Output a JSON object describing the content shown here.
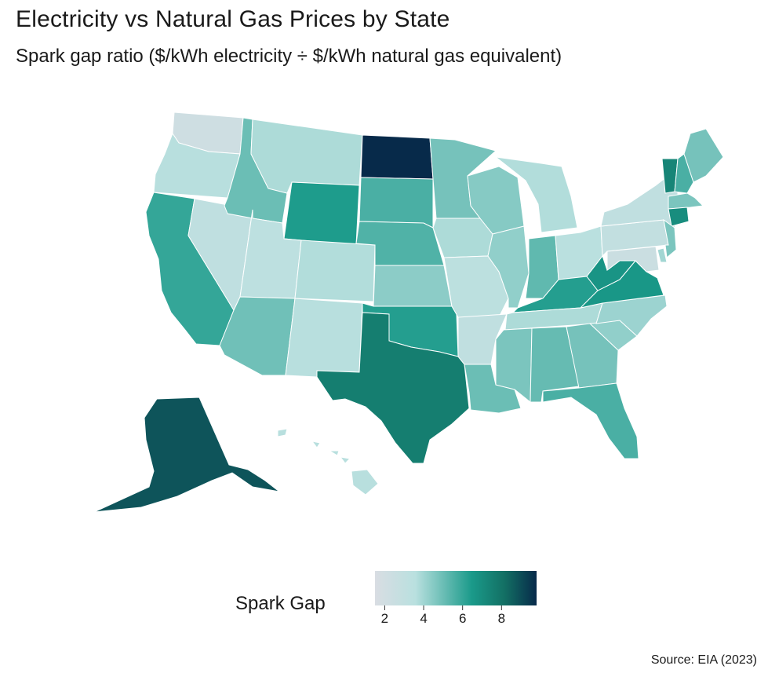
{
  "title": "Electricity vs Natural Gas Prices by State",
  "subtitle": "Spark gap ratio ($/kWh electricity ÷ $/kWh natural gas equivalent)",
  "caption": "Source: EIA (2023)",
  "legend": {
    "title": "Spark Gap",
    "ticks": [
      "2",
      "4",
      "6",
      "8"
    ],
    "domain": [
      1.5,
      9.8
    ],
    "colors": [
      "#d9dde3",
      "#b9e0df",
      "#1a9a8a",
      "#137064",
      "#072a4a"
    ]
  },
  "map_data": {
    "WA": 2.2,
    "OR": 3.6,
    "CA": 6.0,
    "NV": 3.2,
    "ID": 5.0,
    "MT": 3.8,
    "WY": 6.4,
    "UT": 3.3,
    "CO": 3.7,
    "AZ": 4.9,
    "NM": 3.6,
    "ND": 9.8,
    "SD": 5.6,
    "NE": 5.5,
    "KS": 4.4,
    "OK": 6.3,
    "TX": 7.6,
    "MN": 4.8,
    "IA": 3.8,
    "MO": 3.4,
    "AR": 3.1,
    "LA": 5.0,
    "WI": 4.5,
    "IL": 4.3,
    "MI": 3.7,
    "IN": 5.2,
    "OH": 3.5,
    "KY": 6.3,
    "TN": 3.8,
    "MS": 4.7,
    "AL": 5.1,
    "GA": 4.8,
    "FL": 5.6,
    "SC": 4.3,
    "NC": 4.1,
    "VA": 6.6,
    "WV": 6.7,
    "PA": 3.0,
    "NY": 3.1,
    "VT": 7.3,
    "NH": 5.6,
    "ME": 4.8,
    "MA": 4.7,
    "CT": 7.0,
    "NJ": 4.7,
    "DE": 4.0,
    "MD": 2.5,
    "AK": 8.8,
    "HI": 3.6
  }
}
